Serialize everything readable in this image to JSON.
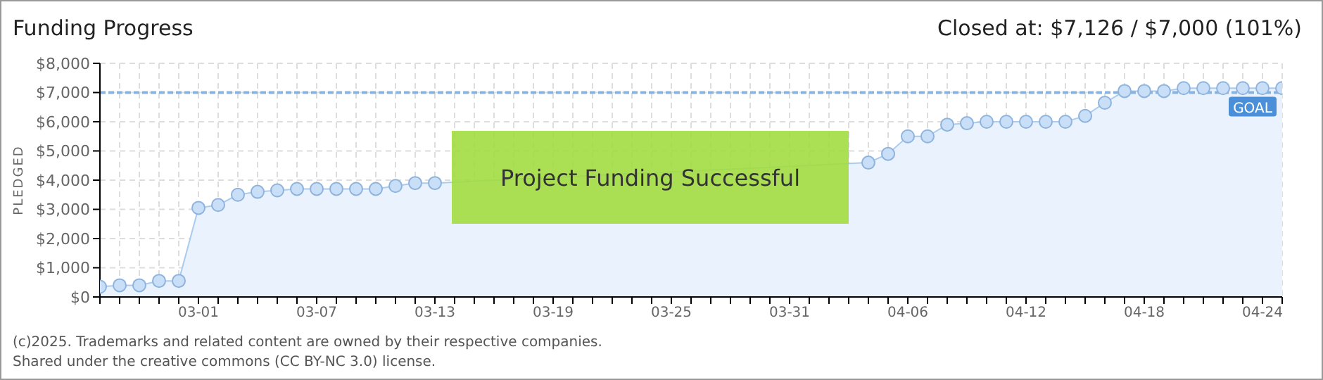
{
  "chart_data": {
    "type": "area",
    "title": "Funding Progress",
    "ylabel": "PLEDGED",
    "annotations": [
      "Closed at: $7,126 / $7,000 (101%)",
      "Project Funding Successful",
      "(c)2025. Trademarks and related content are owned by their respective companies.",
      "Shared under the creative commons (CC BY-NC 3.0) license."
    ],
    "x": [
      "2025-02-24",
      "2025-02-25",
      "2025-02-26",
      "2025-02-27",
      "2025-02-28",
      "2025-03-01",
      "2025-03-02",
      "2025-03-03",
      "2025-03-04",
      "2025-03-05",
      "2025-03-06",
      "2025-03-07",
      "2025-03-08",
      "2025-03-09",
      "2025-03-10",
      "2025-03-11",
      "2025-03-12",
      "2025-03-13",
      "2025-03-14",
      "2025-03-15",
      "2025-03-16",
      "2025-03-17",
      "2025-03-18",
      "2025-03-19",
      "2025-03-20",
      "2025-03-21",
      "2025-03-22",
      "2025-03-23",
      "2025-03-24",
      "2025-03-25",
      "2025-03-26",
      "2025-03-27",
      "2025-03-28",
      "2025-03-29",
      "2025-03-30",
      "2025-03-31",
      "2025-04-01",
      "2025-04-02",
      "2025-04-03",
      "2025-04-04",
      "2025-04-05",
      "2025-04-06",
      "2025-04-07",
      "2025-04-08",
      "2025-04-09",
      "2025-04-10",
      "2025-04-11",
      "2025-04-12",
      "2025-04-13",
      "2025-04-14",
      "2025-04-15",
      "2025-04-16",
      "2025-04-17",
      "2025-04-18",
      "2025-04-19",
      "2025-04-20",
      "2025-04-21",
      "2025-04-22",
      "2025-04-23",
      "2025-04-24",
      "2025-04-25"
    ],
    "series": [
      {
        "color": "#a9cbee",
        "values": [
          350,
          400,
          400,
          550,
          550,
          3050,
          3150,
          3500,
          3600,
          3650,
          3700,
          3700,
          3700,
          3700,
          3700,
          3800,
          3900,
          3900,
          null,
          null,
          null,
          null,
          null,
          null,
          null,
          null,
          null,
          null,
          null,
          null,
          null,
          null,
          null,
          null,
          null,
          null,
          null,
          null,
          null,
          4600,
          4900,
          5500,
          5500,
          5900,
          5950,
          6000,
          6000,
          6000,
          6000,
          6000,
          6200,
          6650,
          7050,
          7050,
          7050,
          7150,
          7150,
          7150,
          7150,
          7150,
          7150
        ]
      }
    ],
    "xlim": [
      "2025-02-24",
      "2025-04-25"
    ],
    "xticks": [
      {
        "value": "2025-02-24",
        "label": null
      },
      {
        "value": "2025-02-25",
        "label": null
      },
      {
        "value": "2025-02-26",
        "label": null
      },
      {
        "value": "2025-02-27",
        "label": null
      },
      {
        "value": "2025-02-28",
        "label": null
      },
      {
        "value": "2025-03-01",
        "label": "03-01"
      },
      {
        "value": "2025-03-02",
        "label": null
      },
      {
        "value": "2025-03-03",
        "label": null
      },
      {
        "value": "2025-03-04",
        "label": null
      },
      {
        "value": "2025-03-05",
        "label": null
      },
      {
        "value": "2025-03-06",
        "label": null
      },
      {
        "value": "2025-03-07",
        "label": "03-07"
      },
      {
        "value": "2025-03-08",
        "label": null
      },
      {
        "value": "2025-03-09",
        "label": null
      },
      {
        "value": "2025-03-10",
        "label": null
      },
      {
        "value": "2025-03-11",
        "label": null
      },
      {
        "value": "2025-03-12",
        "label": null
      },
      {
        "value": "2025-03-13",
        "label": "03-13"
      },
      {
        "value": "2025-03-14",
        "label": null
      },
      {
        "value": "2025-03-15",
        "label": null
      },
      {
        "value": "2025-03-16",
        "label": null
      },
      {
        "value": "2025-03-17",
        "label": null
      },
      {
        "value": "2025-03-18",
        "label": null
      },
      {
        "value": "2025-03-19",
        "label": "03-19"
      },
      {
        "value": "2025-03-20",
        "label": null
      },
      {
        "value": "2025-03-21",
        "label": null
      },
      {
        "value": "2025-03-22",
        "label": null
      },
      {
        "value": "2025-03-23",
        "label": null
      },
      {
        "value": "2025-03-24",
        "label": null
      },
      {
        "value": "2025-03-25",
        "label": "03-25"
      },
      {
        "value": "2025-03-26",
        "label": null
      },
      {
        "value": "2025-03-27",
        "label": null
      },
      {
        "value": "2025-03-28",
        "label": null
      },
      {
        "value": "2025-03-29",
        "label": null
      },
      {
        "value": "2025-03-30",
        "label": null
      },
      {
        "value": "2025-03-31",
        "label": "03-31"
      },
      {
        "value": "2025-04-01",
        "label": null
      },
      {
        "value": "2025-04-02",
        "label": null
      },
      {
        "value": "2025-04-03",
        "label": null
      },
      {
        "value": "2025-04-04",
        "label": null
      },
      {
        "value": "2025-04-05",
        "label": null
      },
      {
        "value": "2025-04-06",
        "label": "04-06"
      },
      {
        "value": "2025-04-07",
        "label": null
      },
      {
        "value": "2025-04-08",
        "label": null
      },
      {
        "value": "2025-04-09",
        "label": null
      },
      {
        "value": "2025-04-10",
        "label": null
      },
      {
        "value": "2025-04-11",
        "label": null
      },
      {
        "value": "2025-04-12",
        "label": "04-12"
      },
      {
        "value": "2025-04-13",
        "label": null
      },
      {
        "value": "2025-04-14",
        "label": null
      },
      {
        "value": "2025-04-15",
        "label": null
      },
      {
        "value": "2025-04-16",
        "label": null
      },
      {
        "value": "2025-04-17",
        "label": null
      },
      {
        "value": "2025-04-18",
        "label": "04-18"
      },
      {
        "value": "2025-04-19",
        "label": null
      },
      {
        "value": "2025-04-20",
        "label": null
      },
      {
        "value": "2025-04-21",
        "label": null
      },
      {
        "value": "2025-04-22",
        "label": null
      },
      {
        "value": "2025-04-23",
        "label": null
      },
      {
        "value": "2025-04-24",
        "label": "04-24"
      },
      {
        "value": "2025-04-25",
        "label": null
      }
    ],
    "ylim": [
      0,
      8000
    ],
    "yticks": [
      {
        "value": 0,
        "label": "$0"
      },
      {
        "value": 1000,
        "label": "$1,000"
      },
      {
        "value": 2000,
        "label": "$2,000"
      },
      {
        "value": 3000,
        "label": "$3,000"
      },
      {
        "value": 4000,
        "label": "$4,000"
      },
      {
        "value": 5000,
        "label": "$5,000"
      },
      {
        "value": 6000,
        "label": "$6,000"
      },
      {
        "value": 7000,
        "label": "$7,000"
      },
      {
        "value": 8000,
        "label": "$8,000"
      }
    ],
    "ref_lines": [
      {
        "axis": "y",
        "value": 7000,
        "label": "GOAL",
        "color": "#8ab4e0",
        "line_style": "dashed"
      }
    ],
    "grid": true,
    "marker": "circle",
    "line_style": "solid"
  }
}
